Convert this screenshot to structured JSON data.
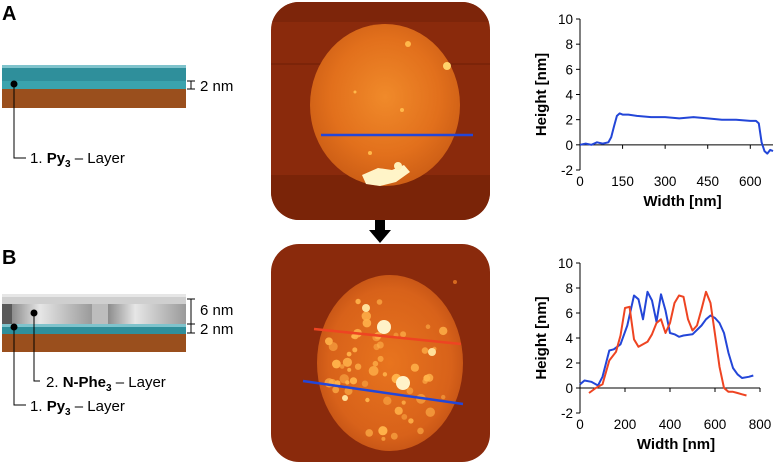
{
  "panels": {
    "a": {
      "letter": "A",
      "thickness_label": "2 nm",
      "layer_number": "1.",
      "layer_name": "Py",
      "layer_sub": "3",
      "layer_suffix": "– Layer"
    },
    "b": {
      "letter": "B",
      "thickness_top_label": "6 nm",
      "thickness_bottom_label": "2 nm",
      "layer2_number": "2.",
      "layer2_name": "N-Phe",
      "layer2_sub": "3",
      "layer2_suffix": "– Layer",
      "layer1_number": "1.",
      "layer1_name": "Py",
      "layer1_sub": "3",
      "layer1_suffix": "– Layer"
    }
  },
  "colors": {
    "substrate": "#9a4f1d",
    "py3_layer": "#2f8f9b",
    "nphe3_layer": "#c8c8c8",
    "afm_background": "#8a2a0c",
    "profile_blue": "#2346d8",
    "profile_red": "#ee4422"
  },
  "chart_data": [
    {
      "type": "line",
      "xlabel": "Width [nm]",
      "ylabel": "Height [nm]",
      "xlim": [
        0,
        680
      ],
      "ylim": [
        -2,
        10
      ],
      "xticks": [
        "0",
        "150",
        "300",
        "450",
        "600"
      ],
      "yticks": [
        "-2",
        "0",
        "2",
        "4",
        "6",
        "8",
        "10"
      ],
      "grid": false,
      "series": [
        {
          "color": "#2346d8",
          "x": [
            0,
            20,
            40,
            60,
            80,
            100,
            110,
            120,
            130,
            140,
            150,
            170,
            200,
            250,
            300,
            350,
            400,
            450,
            500,
            550,
            600,
            620,
            630,
            640,
            650,
            660,
            670,
            680
          ],
          "y": [
            0,
            0.1,
            0.0,
            0.2,
            0.1,
            0.2,
            0.6,
            1.5,
            2.3,
            2.5,
            2.4,
            2.4,
            2.3,
            2.2,
            2.2,
            2.1,
            2.2,
            2.1,
            2.0,
            2.0,
            1.9,
            1.9,
            1.7,
            0.2,
            -0.5,
            -0.7,
            -0.4,
            -0.5
          ]
        }
      ]
    },
    {
      "type": "line",
      "xlabel": "Width [nm]",
      "ylabel": "Height [nm]",
      "xlim": [
        0,
        800
      ],
      "ylim": [
        -2,
        10
      ],
      "xticks": [
        "0",
        "200",
        "400",
        "600",
        "800"
      ],
      "yticks": [
        "-2",
        "0",
        "2",
        "4",
        "6",
        "8",
        "10"
      ],
      "grid": false,
      "series": [
        {
          "color": "#2346d8",
          "x": [
            0,
            20,
            50,
            80,
            100,
            130,
            150,
            180,
            210,
            240,
            260,
            280,
            300,
            320,
            340,
            360,
            380,
            400,
            420,
            440,
            460,
            500,
            540,
            560,
            580,
            600,
            620,
            640,
            660,
            680,
            700,
            720,
            750,
            770
          ],
          "y": [
            0.3,
            0.6,
            0.5,
            0.2,
            0.9,
            3.0,
            3.1,
            3.5,
            5.0,
            7.4,
            7.1,
            5.5,
            7.7,
            7.0,
            5.3,
            7.5,
            6.2,
            4.4,
            4.3,
            4.1,
            4.2,
            4.3,
            5.0,
            5.5,
            5.8,
            5.6,
            5.2,
            4.4,
            2.8,
            1.6,
            1.1,
            0.8,
            0.9,
            1.0
          ]
        },
        {
          "color": "#ee4422",
          "x": [
            40,
            70,
            100,
            130,
            160,
            180,
            200,
            220,
            240,
            260,
            280,
            300,
            320,
            340,
            360,
            380,
            400,
            420,
            440,
            460,
            480,
            500,
            520,
            540,
            560,
            580,
            600,
            620,
            640,
            660,
            680,
            700,
            720,
            740
          ],
          "y": [
            -0.4,
            0.0,
            0.3,
            2.2,
            2.9,
            4.2,
            6.4,
            6.5,
            3.9,
            3.3,
            3.5,
            3.7,
            4.3,
            5.2,
            5.5,
            4.4,
            5.2,
            6.8,
            7.4,
            7.3,
            5.5,
            4.6,
            5.0,
            6.3,
            7.7,
            6.8,
            4.3,
            1.7,
            0.0,
            -0.3,
            -0.3,
            -0.4,
            -0.5,
            -0.6
          ]
        }
      ]
    }
  ]
}
